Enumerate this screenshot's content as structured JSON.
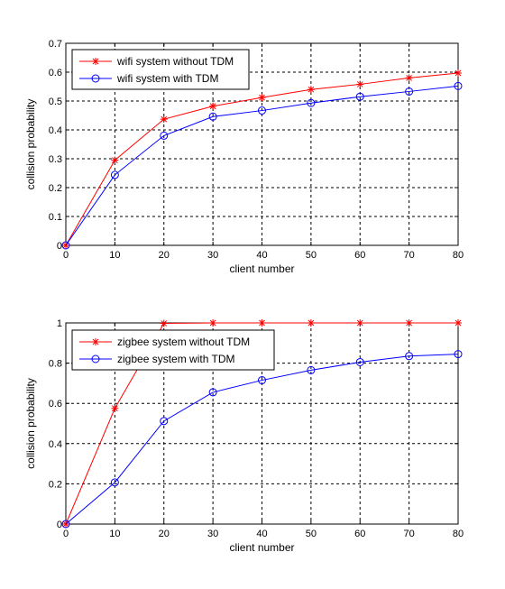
{
  "chart_data": [
    {
      "type": "line",
      "xlabel": "client number",
      "ylabel": "collision probability",
      "xlim": [
        0,
        80
      ],
      "ylim": [
        0,
        0.7
      ],
      "xticks": [
        0,
        10,
        20,
        30,
        40,
        50,
        60,
        70,
        80
      ],
      "yticks": [
        0,
        0.1,
        0.2,
        0.3,
        0.4,
        0.5,
        0.6,
        0.7
      ],
      "ytick_labels": [
        "0",
        "0.1",
        "0.2",
        "0.3",
        "0.4",
        "0.5",
        "0.6",
        "0.7"
      ],
      "grid": true,
      "legend_position": "top-left",
      "x": [
        0,
        10,
        20,
        30,
        40,
        50,
        60,
        70,
        80
      ],
      "series": [
        {
          "name": "wifi system without TDM",
          "color": "#ff0000",
          "marker": "star",
          "values": [
            0,
            0.295,
            0.437,
            0.482,
            0.512,
            0.54,
            0.558,
            0.58,
            0.597
          ]
        },
        {
          "name": "wifi system with TDM",
          "color": "#0000ff",
          "marker": "circle",
          "values": [
            0,
            0.244,
            0.38,
            0.446,
            0.467,
            0.493,
            0.515,
            0.533,
            0.552
          ]
        }
      ]
    },
    {
      "type": "line",
      "xlabel": "client number",
      "ylabel": "collision probability",
      "xlim": [
        0,
        80
      ],
      "ylim": [
        0,
        1
      ],
      "xticks": [
        0,
        10,
        20,
        30,
        40,
        50,
        60,
        70,
        80
      ],
      "yticks": [
        0,
        0.2,
        0.4,
        0.6,
        0.8,
        1
      ],
      "ytick_labels": [
        "0",
        "0.2",
        "0.4",
        "0.6",
        "0.8",
        "1"
      ],
      "grid": true,
      "legend_position": "top-left",
      "x": [
        0,
        10,
        20,
        30,
        40,
        50,
        60,
        70,
        80
      ],
      "series": [
        {
          "name": "zigbee system without TDM",
          "color": "#ff0000",
          "marker": "star",
          "values": [
            0,
            0.575,
            0.998,
            1,
            1,
            1,
            1,
            1,
            1
          ]
        },
        {
          "name": "zigbee system with TDM",
          "color": "#0000ff",
          "marker": "circle",
          "values": [
            0,
            0.207,
            0.512,
            0.655,
            0.715,
            0.765,
            0.805,
            0.835,
            0.845
          ]
        }
      ]
    }
  ]
}
